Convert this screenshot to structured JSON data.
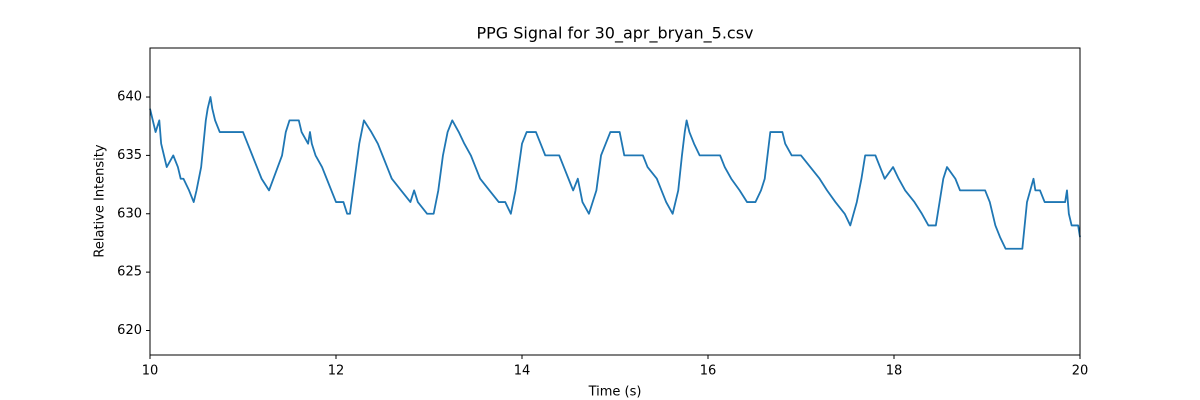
{
  "chart_data": {
    "type": "line",
    "title": "PPG Signal for 30_apr_bryan_5.csv",
    "x_label": "Time (s)",
    "y_label": "Relative Intensity",
    "x": [
      10.0,
      10.03,
      10.06,
      10.1,
      10.12,
      10.15,
      10.18,
      10.25,
      10.3,
      10.33,
      10.36,
      10.42,
      10.47,
      10.5,
      10.55,
      10.6,
      10.62,
      10.65,
      10.67,
      10.7,
      10.75,
      10.8,
      11.0,
      11.05,
      11.1,
      11.15,
      11.2,
      11.28,
      11.42,
      11.46,
      11.5,
      11.6,
      11.63,
      11.7,
      11.72,
      11.74,
      11.78,
      11.85,
      11.9,
      11.95,
      12.0,
      12.08,
      12.12,
      12.15,
      12.2,
      12.25,
      12.3,
      12.38,
      12.45,
      12.5,
      12.55,
      12.6,
      12.7,
      12.8,
      12.84,
      12.88,
      12.98,
      13.05,
      13.1,
      13.15,
      13.2,
      13.25,
      13.32,
      13.38,
      13.45,
      13.5,
      13.55,
      13.65,
      13.75,
      13.82,
      13.88,
      13.93,
      14.0,
      14.05,
      14.15,
      14.2,
      14.25,
      14.4,
      14.45,
      14.5,
      14.55,
      14.6,
      14.65,
      14.72,
      14.8,
      14.85,
      14.9,
      14.95,
      15.05,
      15.1,
      15.3,
      15.35,
      15.45,
      15.5,
      15.55,
      15.62,
      15.68,
      15.72,
      15.75,
      15.77,
      15.8,
      15.85,
      15.91,
      16.13,
      16.18,
      16.25,
      16.34,
      16.42,
      16.51,
      16.57,
      16.61,
      16.67,
      16.8,
      16.83,
      16.9,
      17.0,
      17.1,
      17.2,
      17.28,
      17.37,
      17.47,
      17.53,
      17.6,
      17.65,
      17.69,
      17.8,
      17.85,
      17.9,
      17.99,
      18.05,
      18.12,
      18.22,
      18.3,
      18.37,
      18.45,
      18.49,
      18.53,
      18.57,
      18.66,
      18.71,
      18.98,
      19.03,
      19.09,
      19.14,
      19.2,
      19.27,
      19.38,
      19.43,
      19.5,
      19.52,
      19.57,
      19.62,
      19.84,
      19.86,
      19.88,
      19.91,
      19.98,
      20.0
    ],
    "series": [
      {
        "name": "PPG",
        "color": "#1f77b4",
        "values": [
          639,
          638,
          637,
          638,
          636,
          635,
          634,
          635,
          634,
          633,
          633,
          632,
          631,
          632,
          634,
          638,
          639,
          640,
          639,
          638,
          637,
          637,
          637,
          636,
          635,
          634,
          633,
          632,
          635,
          637,
          638,
          638,
          637,
          636,
          637,
          636,
          635,
          634,
          633,
          632,
          631,
          631,
          630,
          630,
          633,
          636,
          638,
          637,
          636,
          635,
          634,
          633,
          632,
          631,
          632,
          631,
          630,
          630,
          632,
          635,
          637,
          638,
          637,
          636,
          635,
          634,
          633,
          632,
          631,
          631,
          630,
          632,
          636,
          637,
          637,
          636,
          635,
          635,
          634,
          633,
          632,
          633,
          631,
          630,
          632,
          635,
          636,
          637,
          637,
          635,
          635,
          634,
          633,
          632,
          631,
          630,
          632,
          635,
          637,
          638,
          637,
          636,
          635,
          635,
          634,
          633,
          632,
          631,
          631,
          632,
          633,
          637,
          637,
          636,
          635,
          635,
          634,
          633,
          632,
          631,
          630,
          629,
          631,
          633,
          635,
          635,
          634,
          633,
          634,
          633,
          632,
          631,
          630,
          629,
          629,
          631,
          633,
          634,
          633,
          632,
          632,
          631,
          629,
          628,
          627,
          627,
          627,
          631,
          633,
          632,
          632,
          631,
          631,
          632,
          630,
          629,
          629,
          628
        ]
      }
    ],
    "xlim": [
      10,
      20
    ],
    "xticks": [
      10,
      12,
      14,
      16,
      18,
      20
    ],
    "ylim": [
      617.9,
      644.2
    ],
    "yticks": [
      620,
      625,
      630,
      635,
      640
    ]
  }
}
